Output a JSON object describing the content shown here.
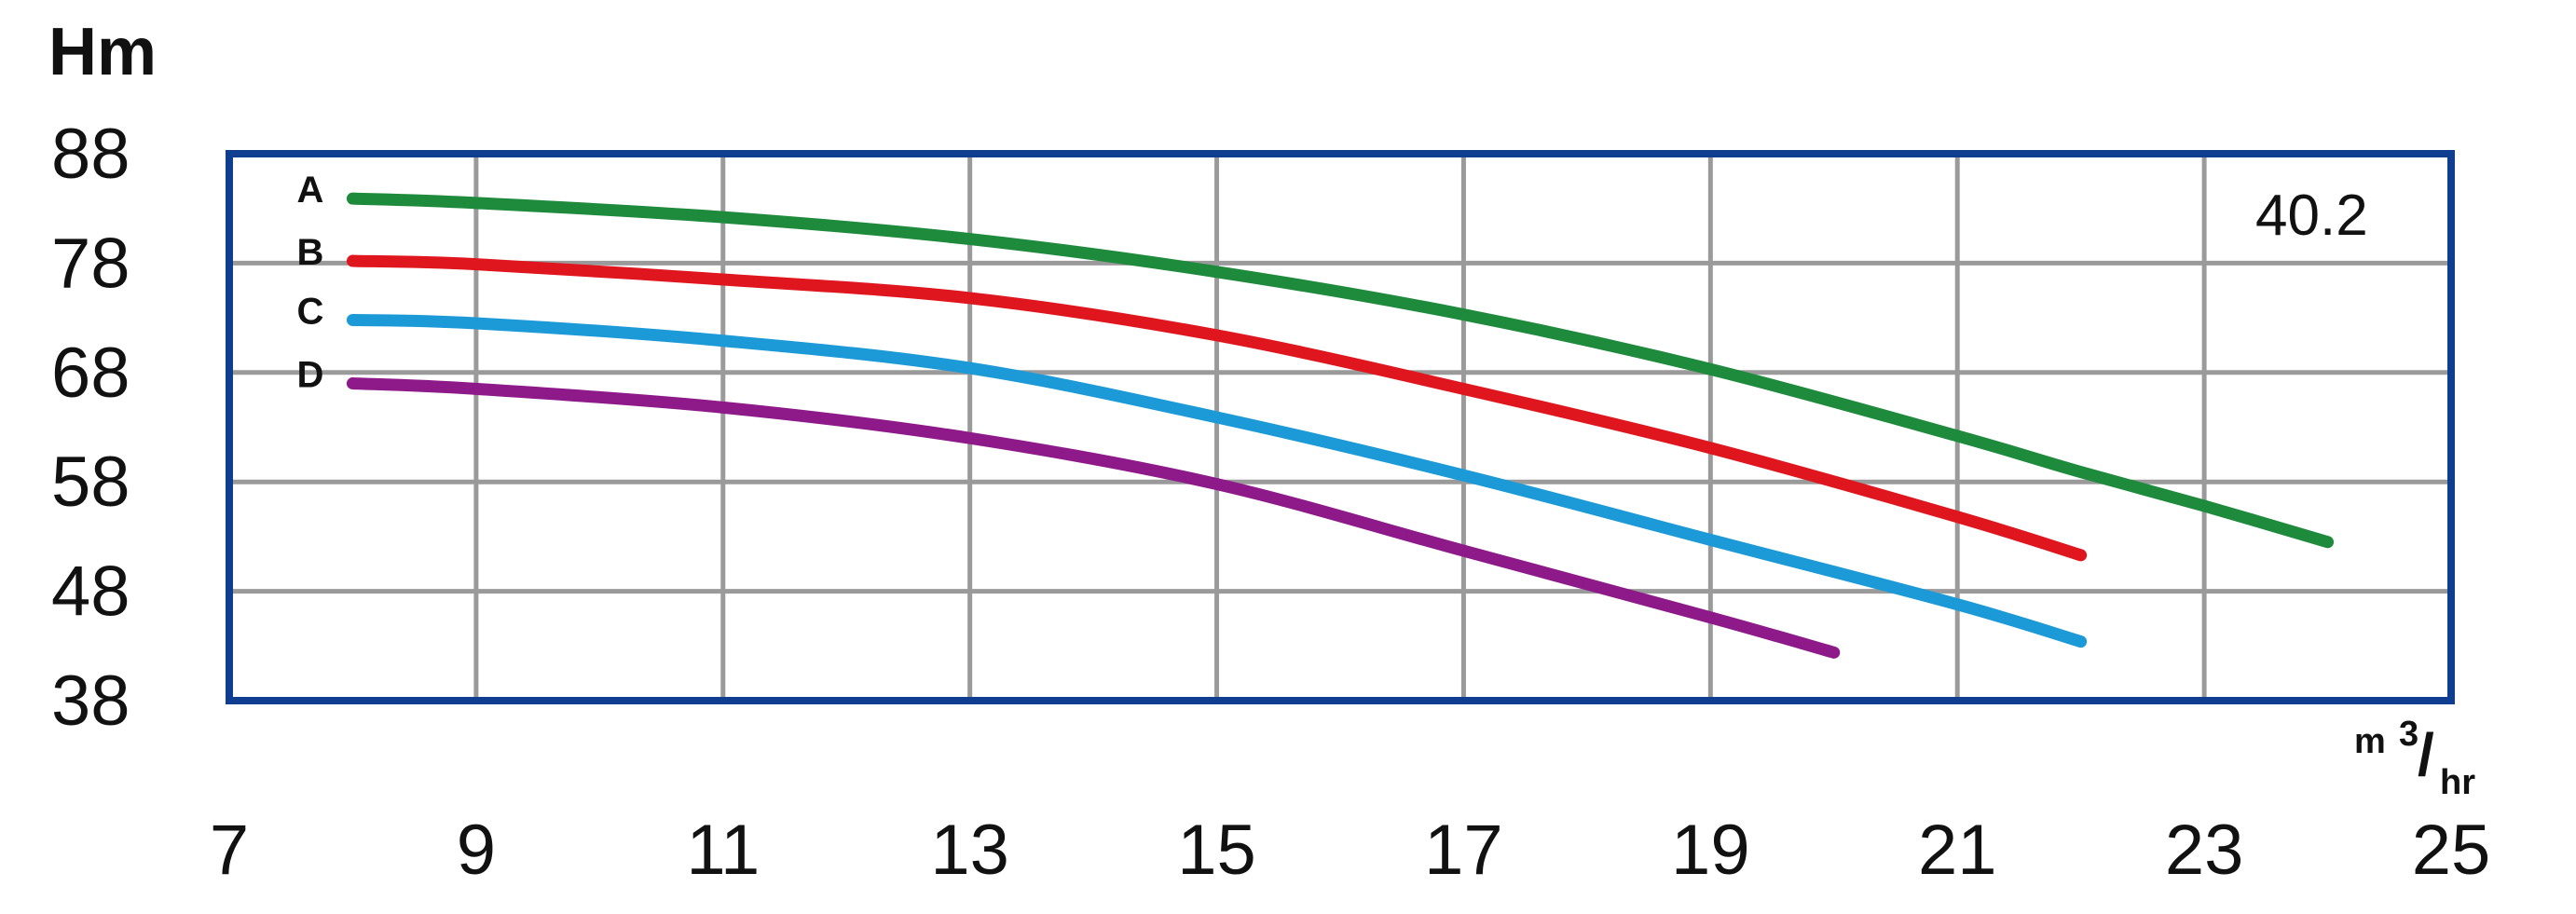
{
  "chart_data": {
    "type": "line",
    "ylabel": "Hm",
    "xlabel_unit": {
      "base": "m",
      "sup": "3",
      "slash": "/",
      "sub": "hr"
    },
    "model_label": "40.2",
    "xlim": [
      7,
      25
    ],
    "ylim": [
      38,
      88
    ],
    "x_ticks": [
      "7",
      "9",
      "11",
      "13",
      "15",
      "17",
      "19",
      "21",
      "23",
      "25"
    ],
    "y_ticks": [
      "88",
      "78",
      "68",
      "58",
      "48",
      "38"
    ],
    "y_gridlines": [
      48,
      58,
      68,
      78
    ],
    "x_gridlines": [
      9,
      11,
      13,
      15,
      17,
      19,
      21,
      23
    ],
    "grid": true,
    "series": [
      {
        "name": "A",
        "color": "#1e8a3c",
        "points": [
          [
            8,
            83.9
          ],
          [
            9,
            83.5
          ],
          [
            11,
            82.2
          ],
          [
            13,
            80.2
          ],
          [
            15,
            77.2
          ],
          [
            17,
            73.3
          ],
          [
            19,
            68.3
          ],
          [
            21,
            62.2
          ],
          [
            22,
            58.9
          ],
          [
            23,
            55.8
          ],
          [
            24,
            52.5
          ]
        ]
      },
      {
        "name": "B",
        "color": "#e0161f",
        "points": [
          [
            8,
            78.2
          ],
          [
            9,
            77.9
          ],
          [
            11,
            76.5
          ],
          [
            13,
            74.8
          ],
          [
            15,
            71.4
          ],
          [
            17,
            66.5
          ],
          [
            19,
            61.1
          ],
          [
            21,
            54.8
          ],
          [
            22,
            51.3
          ]
        ]
      },
      {
        "name": "C",
        "color": "#1c9ad8",
        "points": [
          [
            8,
            72.8
          ],
          [
            9,
            72.5
          ],
          [
            11,
            70.9
          ],
          [
            13,
            68.4
          ],
          [
            15,
            63.9
          ],
          [
            17,
            58.6
          ],
          [
            19,
            52.7
          ],
          [
            21,
            46.8
          ],
          [
            22,
            43.4
          ]
        ]
      },
      {
        "name": "D",
        "color": "#8e1a8a",
        "points": [
          [
            8,
            67.0
          ],
          [
            9,
            66.5
          ],
          [
            11,
            64.8
          ],
          [
            13,
            62.0
          ],
          [
            15,
            57.8
          ],
          [
            17,
            51.7
          ],
          [
            19,
            45.6
          ],
          [
            20,
            42.4
          ]
        ]
      }
    ]
  }
}
